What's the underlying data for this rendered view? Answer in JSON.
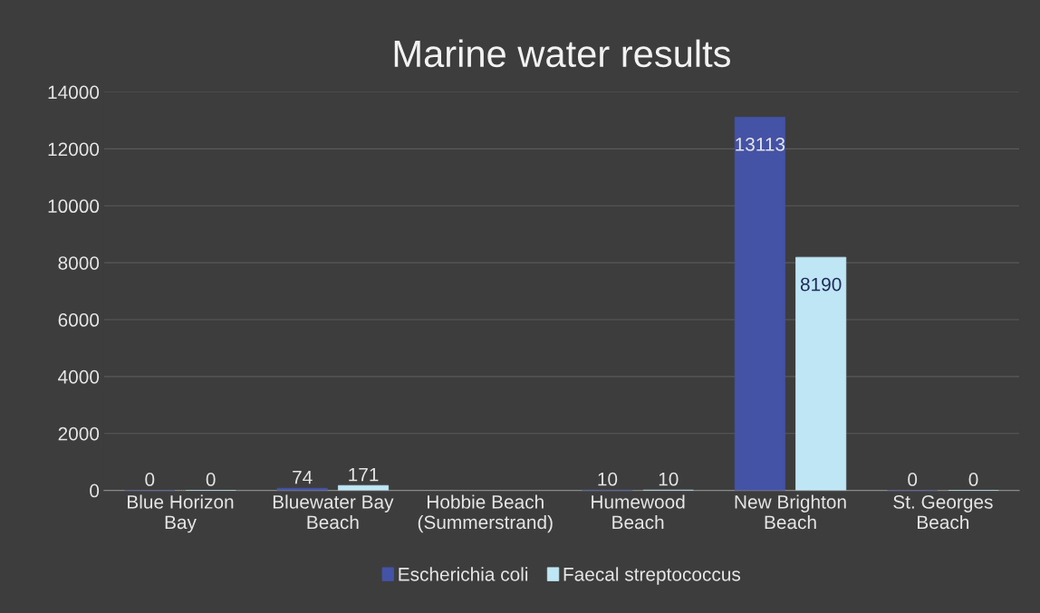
{
  "chart_data": {
    "type": "bar",
    "title": "Marine water results",
    "categories": [
      "Blue Horizon Bay",
      "Bluewater Bay Beach",
      "Hobbie Beach (Summerstrand)",
      "Humewood Beach",
      "New Brighton Beach",
      "St. Georges Beach"
    ],
    "series": [
      {
        "name": "Escherichia coli",
        "color": "#4453a6",
        "values": [
          0,
          74,
          null,
          10,
          13113,
          0
        ]
      },
      {
        "name": "Faecal streptococcus",
        "color": "#bfe6f4",
        "values": [
          0,
          171,
          null,
          10,
          8190,
          0
        ]
      }
    ],
    "ylim": [
      0,
      14000
    ],
    "yticks": [
      0,
      2000,
      4000,
      6000,
      8000,
      10000,
      12000,
      14000
    ],
    "grid": "y",
    "legend": "bottom",
    "data_labels": true
  }
}
